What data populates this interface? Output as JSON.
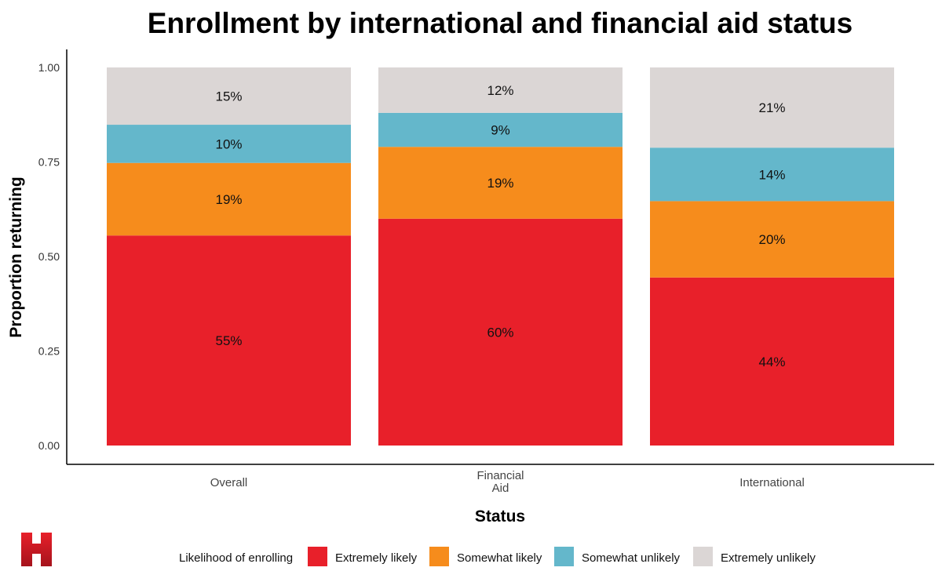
{
  "logo": {
    "alt": "H"
  },
  "chart_data": {
    "type": "bar",
    "stacked": true,
    "title": "Enrollment by international and financial aid status",
    "xlabel": "Status",
    "ylabel": "Proportion returning",
    "ylim": [
      0,
      1
    ],
    "yticks": [
      "0.00",
      "0.25",
      "0.50",
      "0.75",
      "1.00"
    ],
    "ytick_values": [
      0,
      0.25,
      0.5,
      0.75,
      1.0
    ],
    "categories": [
      [
        "Overall"
      ],
      [
        "Financial",
        "Aid"
      ],
      [
        "International"
      ]
    ],
    "series": [
      {
        "name": "Extremely likely",
        "color": "#e8202a",
        "values": [
          0.55,
          0.6,
          0.44
        ],
        "labels": [
          "55%",
          "60%",
          "44%"
        ]
      },
      {
        "name": "Somewhat likely",
        "color": "#f68c1c",
        "values": [
          0.19,
          0.19,
          0.2
        ],
        "labels": [
          "19%",
          "19%",
          "20%"
        ]
      },
      {
        "name": "Somewhat unlikely",
        "color": "#64b7cb",
        "values": [
          0.1,
          0.09,
          0.14
        ],
        "labels": [
          "10%",
          "9%",
          "14%"
        ]
      },
      {
        "name": "Extremely unlikely",
        "color": "#dbd6d5",
        "values": [
          0.15,
          0.12,
          0.21
        ],
        "labels": [
          "15%",
          "12%",
          "21%"
        ]
      }
    ],
    "legend": {
      "title": "Likelihood of enrolling",
      "position": "bottom"
    }
  }
}
